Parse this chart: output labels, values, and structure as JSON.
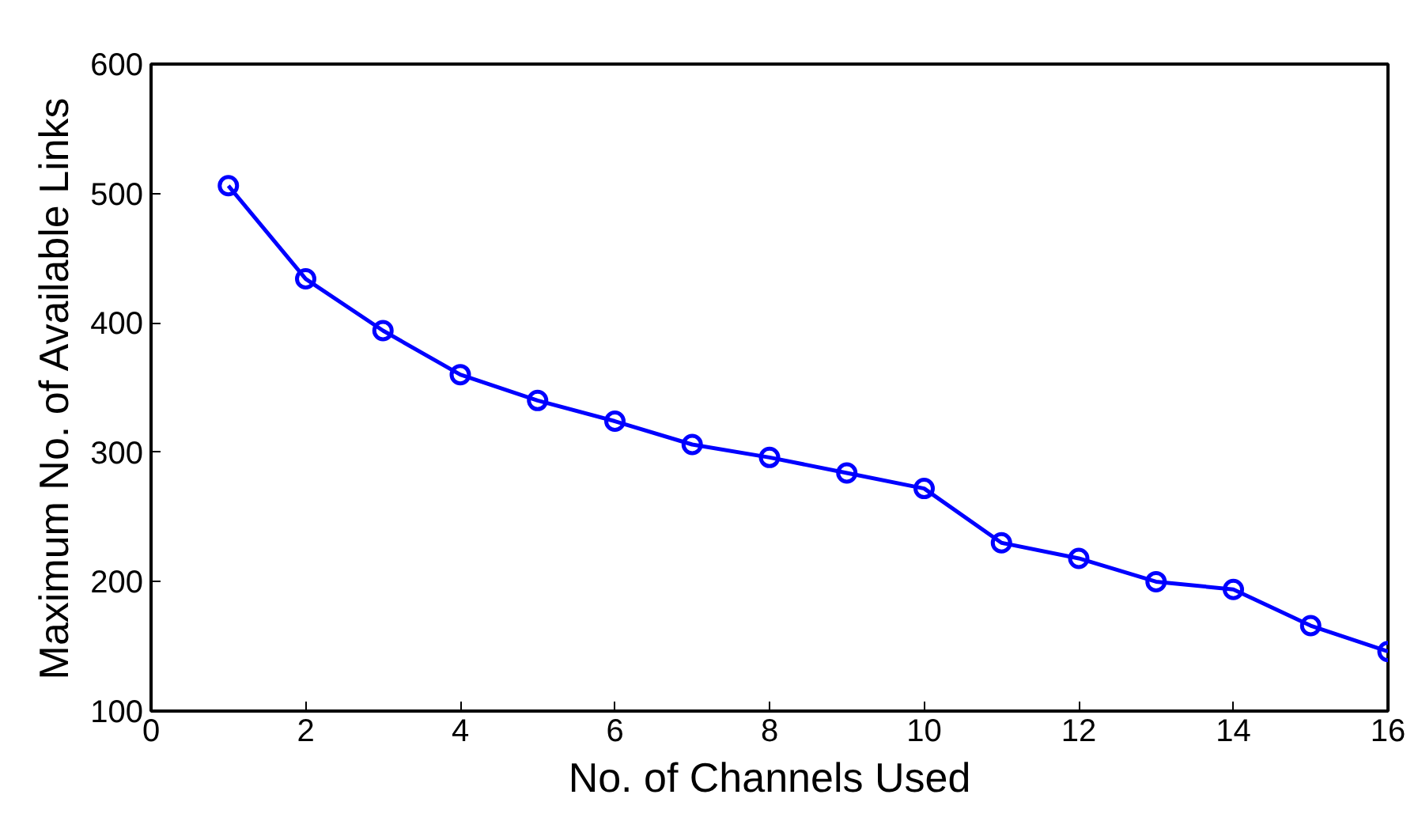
{
  "chart_data": {
    "type": "line",
    "xlabel": "No. of Channels Used",
    "ylabel": "Maximum No. of Available Links",
    "x": [
      1,
      2,
      3,
      4,
      5,
      6,
      7,
      8,
      9,
      10,
      11,
      12,
      13,
      14,
      15,
      16
    ],
    "series": [
      {
        "color": "#0000ff",
        "values": [
          506,
          434,
          394,
          360,
          340,
          324,
          306,
          296,
          284,
          272,
          230,
          218,
          200,
          194,
          166,
          146
        ]
      }
    ],
    "xlim": [
      0,
      16
    ],
    "xticks": [
      0,
      2,
      4,
      6,
      8,
      10,
      12,
      14,
      16
    ],
    "ylim": [
      100,
      600
    ],
    "yticks": [
      100,
      200,
      300,
      400,
      500,
      600
    ],
    "grid": false,
    "marker": "circle",
    "line_style": "solid"
  }
}
